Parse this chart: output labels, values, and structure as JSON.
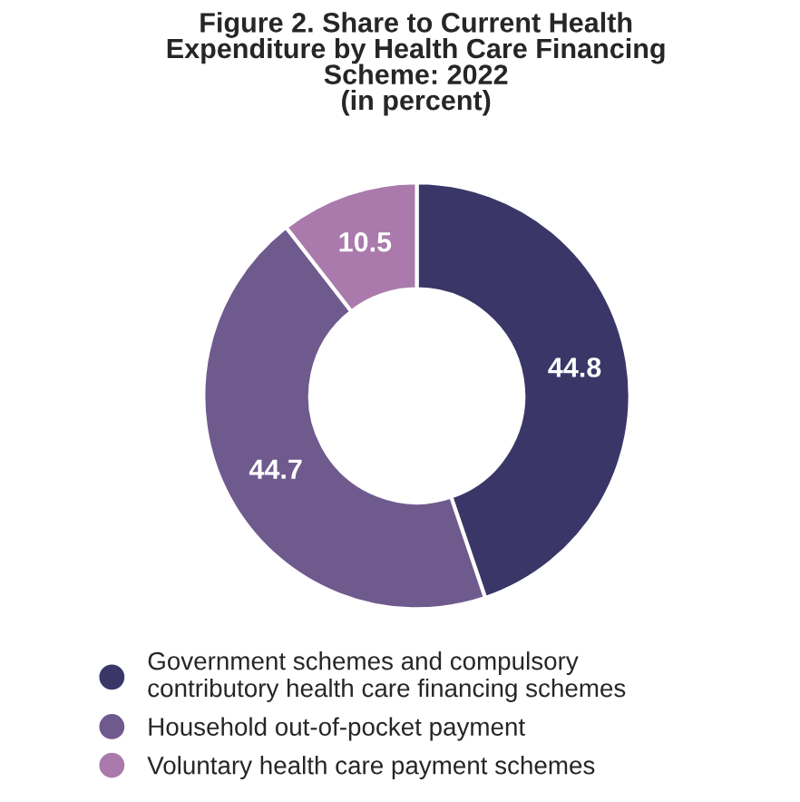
{
  "chart_data": {
    "type": "donut",
    "title": "Figure 2. Share to Current Health\nExpenditure by Health Care Financing\nScheme: 2022\n(in percent)",
    "categories": [
      "Government schemes and compulsory\ncontributory health care financing schemes",
      "Household out-of-pocket payment",
      "Voluntary health care payment schemes"
    ],
    "values": [
      44.8,
      44.7,
      10.5
    ],
    "colors": [
      "#3a3768",
      "#6f5a8e",
      "#a97aab"
    ],
    "data_labels": true,
    "legend": "bottom"
  }
}
